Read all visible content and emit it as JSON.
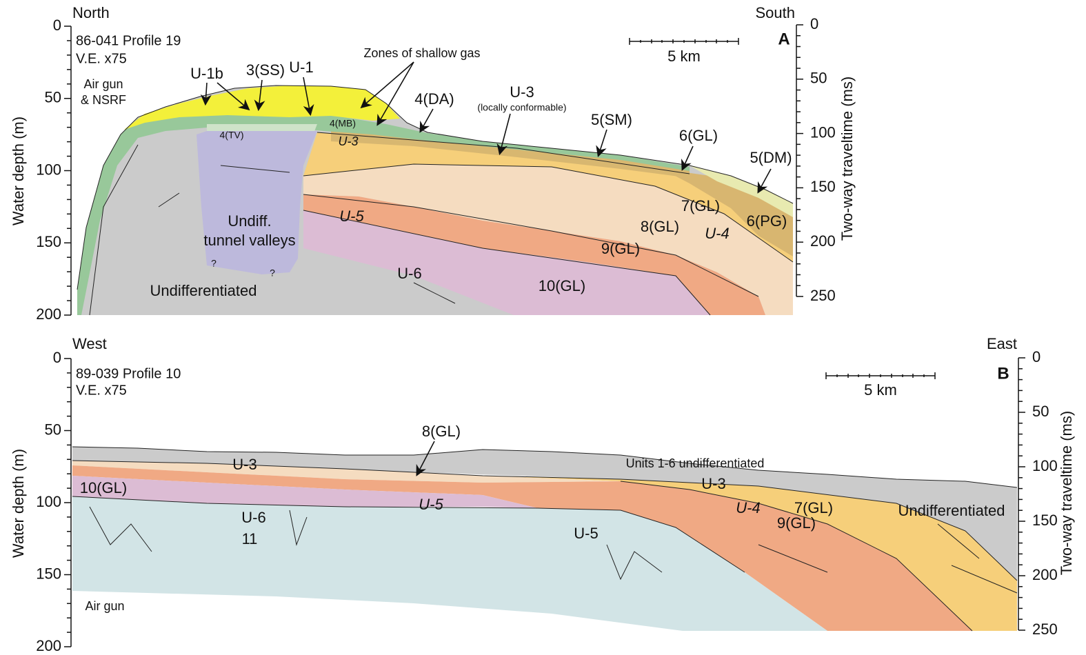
{
  "panels": [
    {
      "letter": "A",
      "left_direction": "North",
      "right_direction": "South",
      "profile": "86-041 Profile 19",
      "exaggeration": "V.E. x75",
      "source": [
        "Air gun",
        "& NSRF"
      ],
      "scale_bar": "5 km",
      "y_axis": {
        "label": "Water depth (m)",
        "lim": [
          0,
          200
        ],
        "ticks": [
          0,
          50,
          100,
          150,
          200
        ]
      },
      "y2_axis": {
        "label": "Two-way traveltime (ms)",
        "lim": [
          0,
          250
        ],
        "ticks": [
          0,
          50,
          100,
          150,
          200,
          250
        ]
      },
      "labels": [
        "U-1b",
        "3(SS)",
        "U-1",
        "Zones of shallow gas",
        "4(DA)",
        "U-3",
        "(locally conformable)",
        "5(SM)",
        "6(GL)",
        "5(DM)",
        "4(TV)",
        "4(MB)",
        "U-3",
        "7(GL)",
        "U-4",
        "6(PG)",
        "8(GL)",
        "U-5",
        "Undiff.",
        "tunnel valleys",
        "?",
        "?",
        "9(GL)",
        "U-6",
        "10(GL)",
        "Undifferentiated"
      ]
    },
    {
      "letter": "B",
      "left_direction": "West",
      "right_direction": "East",
      "profile": "89-039 Profile 10",
      "exaggeration": "V.E. x75",
      "source": [
        "Air gun"
      ],
      "scale_bar": "5 km",
      "y_axis": {
        "label": "Water depth (m)",
        "lim": [
          0,
          200
        ],
        "ticks": [
          0,
          50,
          100,
          150,
          200
        ]
      },
      "y2_axis": {
        "label": "Two-way traveltime (ms)",
        "lim": [
          0,
          250
        ],
        "ticks": [
          0,
          50,
          100,
          150,
          200,
          250
        ]
      },
      "labels": [
        "8(GL)",
        "U-3",
        "Units 1-6 undifferentiated",
        "10(GL)",
        "U-3",
        "U-5",
        "U-4",
        "7(GL)",
        "Undifferentiated",
        "U-6",
        "U-5",
        "9(GL)",
        "11"
      ]
    }
  ]
}
